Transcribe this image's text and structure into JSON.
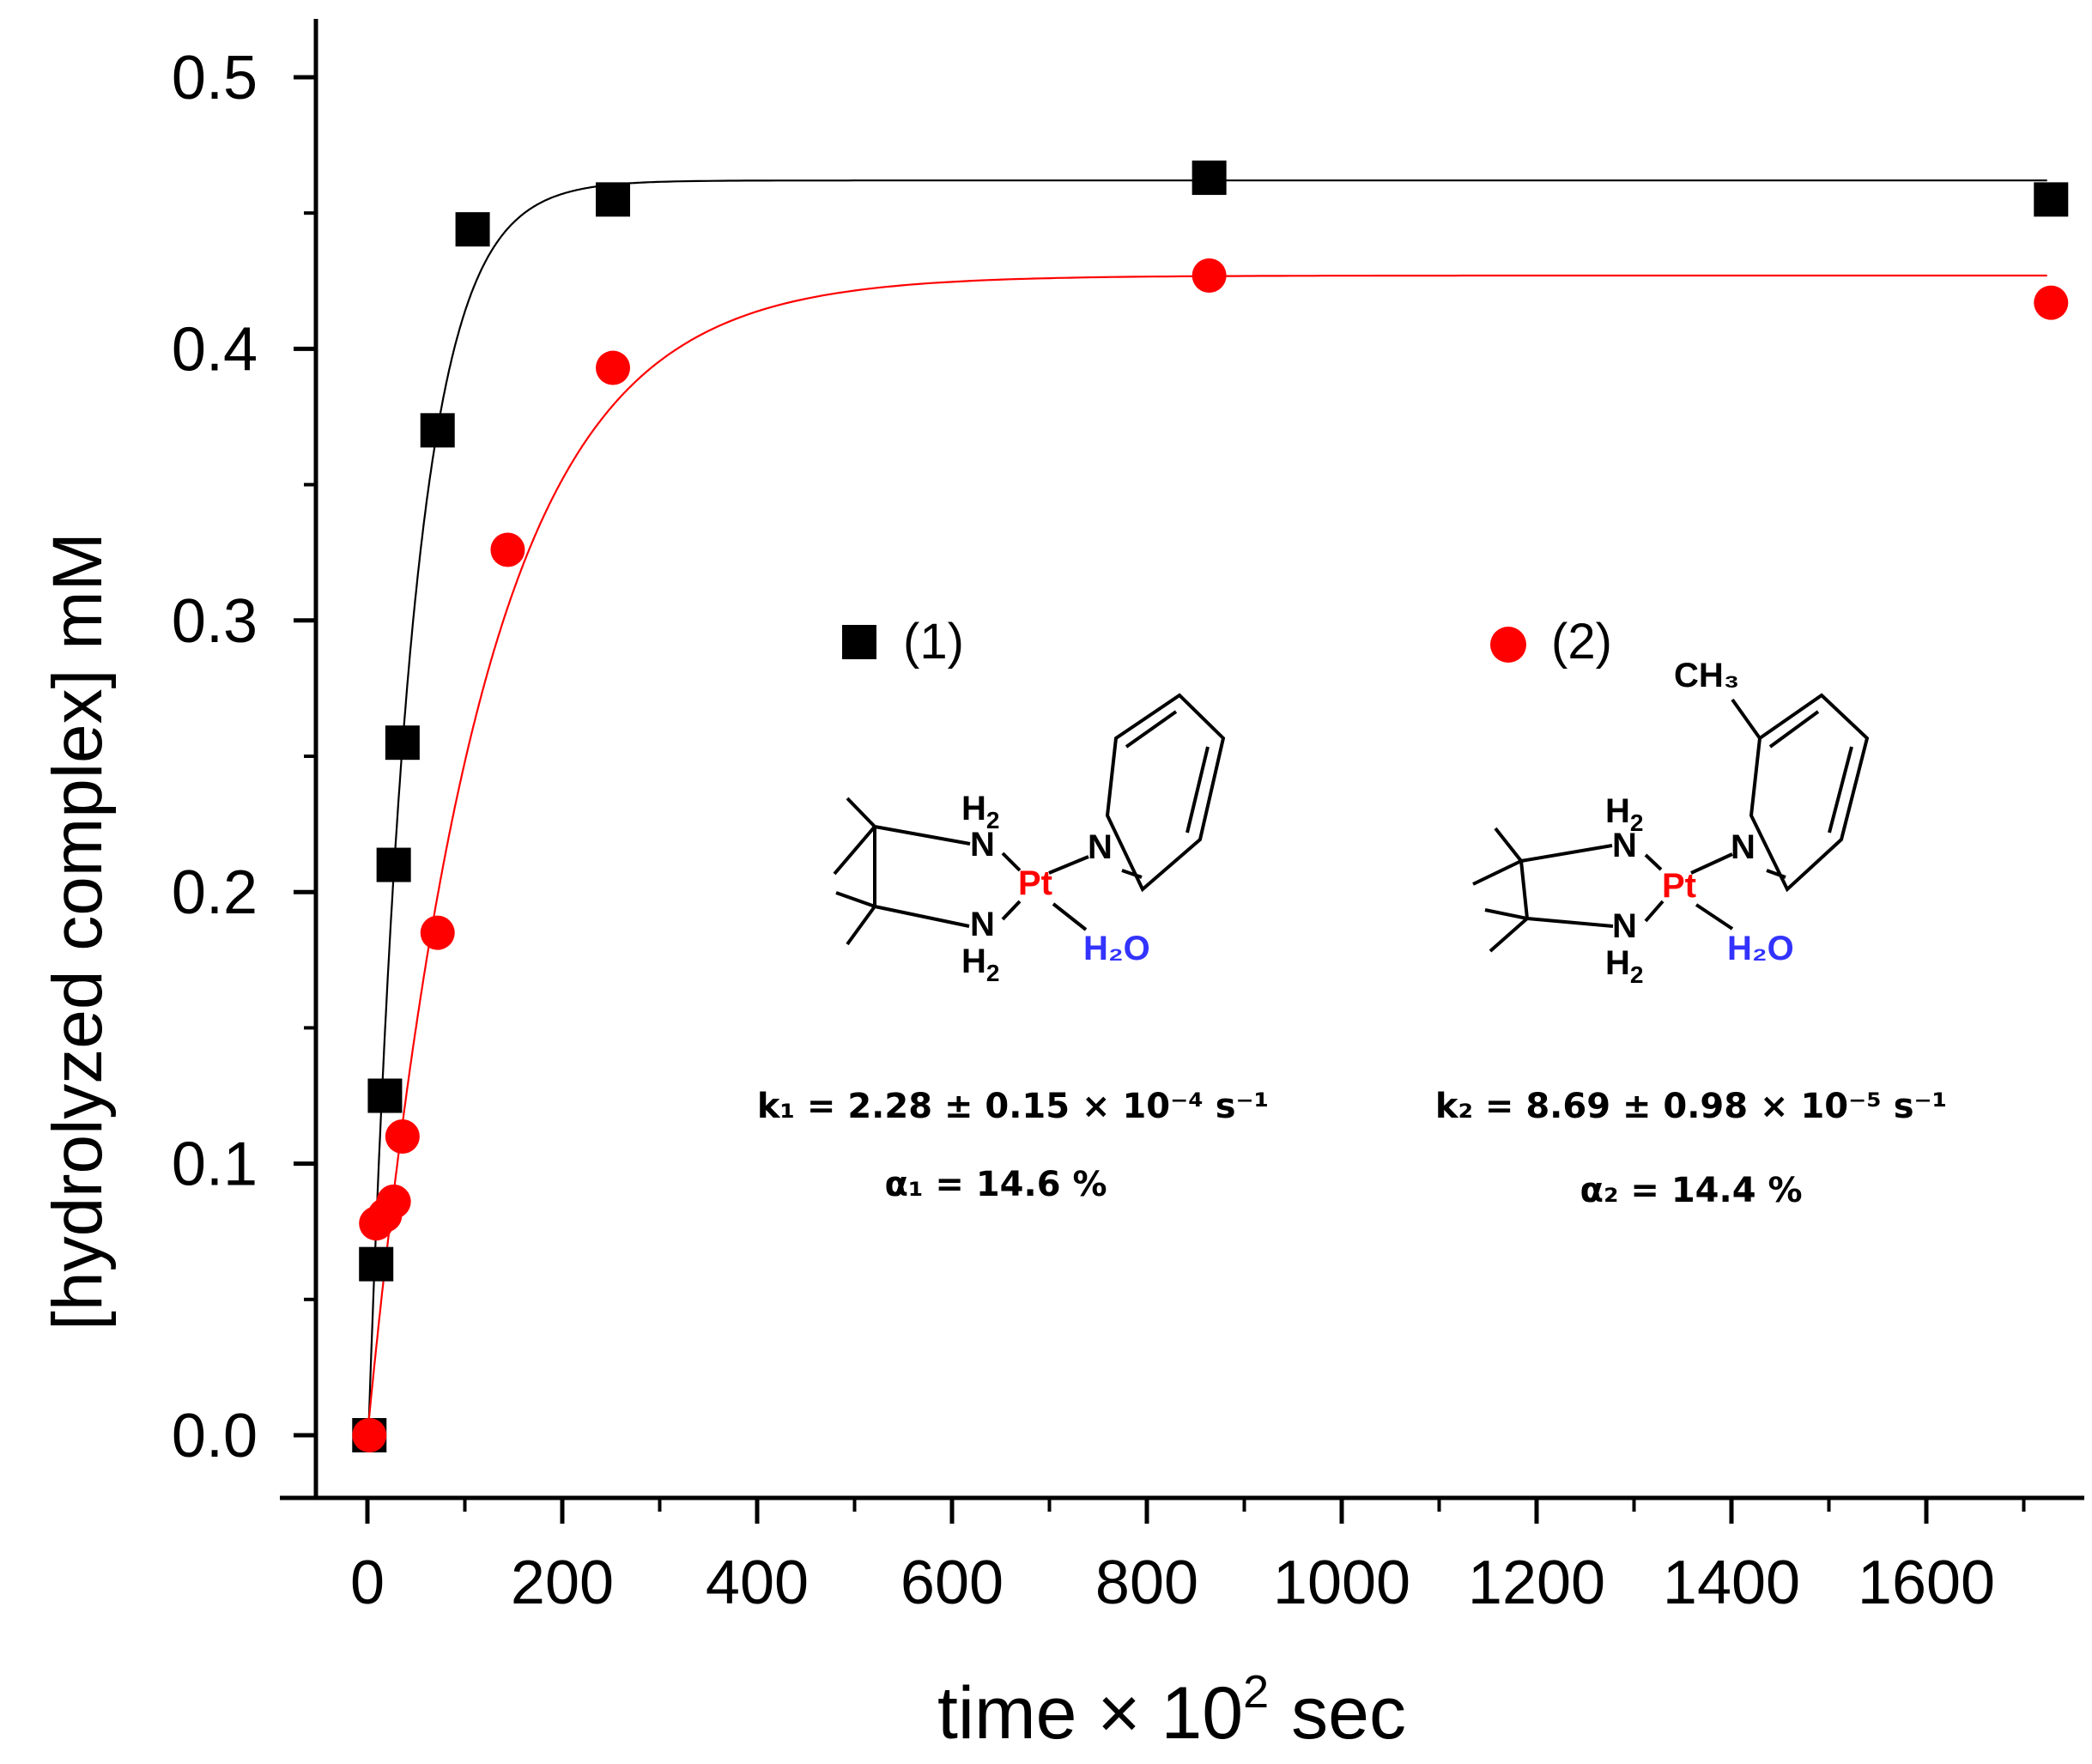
{
  "chart_data": {
    "type": "scatter",
    "xlabel": "time × 10",
    "xlabel_sup": "2",
    "xlabel_unit": "sec",
    "ylabel": "[hydrolyzed complex]  mM",
    "xlim": [
      -50,
      1800
    ],
    "ylim": [
      -0.022,
      0.52
    ],
    "x_ticks": [
      0,
      200,
      400,
      600,
      800,
      1000,
      1200,
      1400,
      1600
    ],
    "x_tick_labels": [
      "0",
      "200",
      "400",
      "600",
      "800",
      "1000",
      "1200",
      "1400",
      "1600"
    ],
    "y_ticks": [
      0.0,
      0.1,
      0.2,
      0.3,
      0.4,
      0.5
    ],
    "y_tick_labels": [
      "0.0",
      "0.1",
      "0.2",
      "0.3",
      "0.4",
      "0.5"
    ],
    "series": [
      {
        "name": "(1)",
        "marker": "square",
        "color": "#000000",
        "x": [
          2,
          9,
          18,
          27,
          36,
          72,
          108,
          252,
          864,
          1728
        ],
        "y": [
          0.0,
          0.063,
          0.125,
          0.21,
          0.255,
          0.37,
          0.444,
          0.455,
          0.463,
          0.455
        ],
        "fit": {
          "model": "exponential",
          "plateau": 0.462,
          "k": 0.0228,
          "t0": 1
        }
      },
      {
        "name": "(2)",
        "marker": "circle",
        "color": "#ff0000",
        "x": [
          2,
          9,
          18,
          27,
          36,
          72,
          144,
          252,
          864,
          1728
        ],
        "y": [
          0.0,
          0.078,
          0.081,
          0.086,
          0.11,
          0.185,
          0.326,
          0.393,
          0.427,
          0.417
        ],
        "fit": {
          "model": "exponential",
          "plateau": 0.427,
          "k": 0.00869,
          "t0": 0
        }
      }
    ],
    "legend": [
      {
        "label": "(1)",
        "marker": "square",
        "color": "#000000"
      },
      {
        "label": "(2)",
        "marker": "circle",
        "color": "#ff0000"
      }
    ],
    "annotations": {
      "k1": "k₁ = 2.28 ± 0.15 × 10⁻⁴ s⁻¹",
      "a1": "α₁ = 14.6 %",
      "k2": "k₂ = 8.69 ± 0.98 × 10⁻⁵ s⁻¹",
      "a2": "α₂ = 14.4 %"
    },
    "structure_labels": {
      "h2": "H",
      "h2_sub": "2",
      "n": "N",
      "pt": "Pt",
      "water": "H₂O",
      "ch3": "CH₃"
    },
    "colors": {
      "pt": "#ff0000",
      "water": "#3333ff"
    }
  }
}
